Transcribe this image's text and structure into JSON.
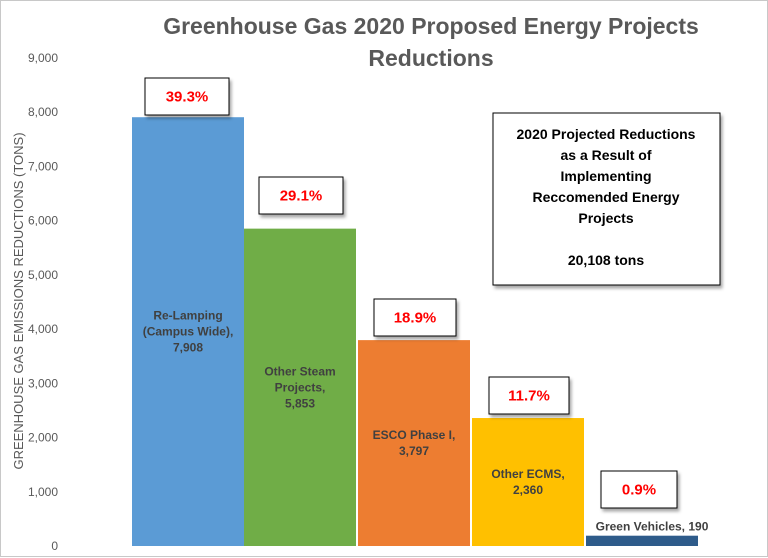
{
  "chart_data": {
    "type": "bar",
    "title_lines": [
      "Greenhouse Gas 2020 Proposed Energy Projects",
      "Reductions"
    ],
    "ylabel": "GREENHOUSE GAS EMISSIONS REDUCTIONS (TONS)",
    "xlabel": "",
    "ylim": [
      0,
      9000
    ],
    "y_ticks": [
      0,
      1000,
      2000,
      3000,
      4000,
      5000,
      6000,
      7000,
      8000,
      9000
    ],
    "y_tick_labels": [
      "0",
      "1,000",
      "2,000",
      "3,000",
      "4,000",
      "5,000",
      "6,000",
      "7,000",
      "8,000",
      "9,000"
    ],
    "grid": false,
    "bars": [
      {
        "value": 7908,
        "label_lines": [
          "Re-Lamping",
          "(Campus Wide),",
          "7,908"
        ],
        "percent_label": "39.3%",
        "color": "#5b9bd5"
      },
      {
        "value": 5853,
        "label_lines": [
          "Other Steam",
          "Projects,",
          "5,853"
        ],
        "percent_label": "29.1%",
        "color": "#70ad47"
      },
      {
        "value": 3797,
        "label_lines": [
          "ESCO Phase I,",
          "3,797"
        ],
        "percent_label": "18.9%",
        "color": "#ed7d31"
      },
      {
        "value": 2360,
        "label_lines": [
          "Other ECMS,",
          "2,360"
        ],
        "percent_label": "11.7%",
        "color": "#ffc000"
      },
      {
        "value": 190,
        "label_lines": [
          "Green Vehicles, 190"
        ],
        "percent_label": "0.9%",
        "color": "#2e5b8a"
      }
    ],
    "annotation": {
      "lines": [
        "2020 Projected Reductions",
        "as a Result of",
        "Implementing",
        "Reccomended Energy",
        "Projects",
        "",
        "20,108 tons"
      ],
      "placement": "top-right"
    },
    "colors": {
      "percent_text": "#ff0000",
      "axis_text": "#595959"
    }
  }
}
